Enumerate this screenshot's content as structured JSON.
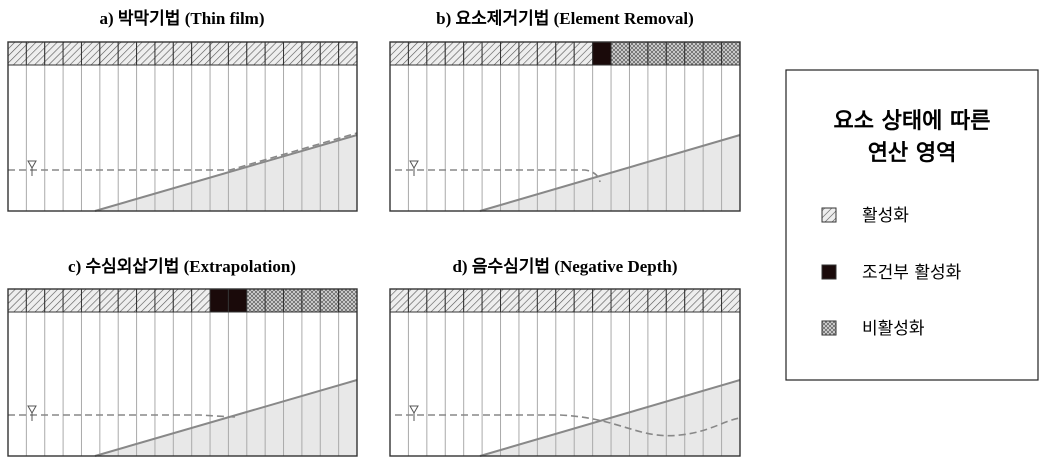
{
  "panels": [
    {
      "title": "a) 박막기법 (Thin film)"
    },
    {
      "title": "b) 요소제거기법 (Element Removal)"
    },
    {
      "title": "c) 수심외삽기법 (Extrapolation)"
    },
    {
      "title": "d) 음수심기법 (Negative Depth)"
    }
  ],
  "legend": {
    "title_lines": [
      "요소 상태에 따른",
      "연산 영역"
    ],
    "items": [
      {
        "label": "활성화"
      },
      {
        "label": "조건부 활성화"
      },
      {
        "label": "비활성화"
      }
    ]
  }
}
